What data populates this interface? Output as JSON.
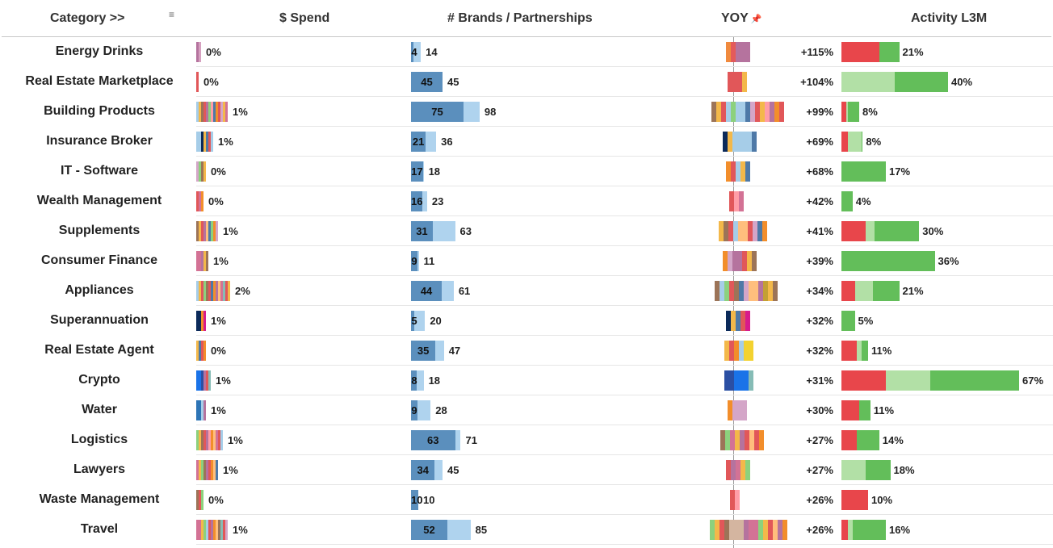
{
  "header": {
    "category": "Category >>",
    "spend": "$ Spend",
    "brands": "# Brands / Partnerships",
    "yoy": "YOY",
    "activity": "Activity L3M"
  },
  "icons": {
    "sort": "sort-icon",
    "pin": "pin-icon"
  },
  "colors": {
    "brand_dark": "#5b8fbd",
    "brand_light": "#afd3ee",
    "activity_red": "#e8464b",
    "activity_light_green": "#b2e0a6",
    "activity_green": "#63be5a"
  },
  "chart_data": {
    "type": "table",
    "rows": [
      {
        "category": "Energy Drinks",
        "spend_label": "0%",
        "spend_colors": [
          "#b5739e",
          "#d6a1c0"
        ],
        "brands": 4,
        "partnerships": 14,
        "yoy": "+115%",
        "yoy_colors": [
          "#f08a3e",
          "#e45a5a",
          "#b5739e",
          "#b5739e",
          "#b5739e"
        ],
        "activity": "21%",
        "act_red": 8.5,
        "act_light": 0,
        "act_green": 4.5
      },
      {
        "category": "Real Estate Marketplace",
        "spend_label": "0%",
        "spend_colors": [
          "#e15759"
        ],
        "brands": 45,
        "partnerships": 45,
        "yoy": "+104%",
        "yoy_colors": [
          "#e15759",
          "#e15759",
          "#e15759",
          "#f3b84a"
        ],
        "activity": "40%",
        "act_red": 0,
        "act_light": 12,
        "act_green": 12
      },
      {
        "category": "Building Products",
        "spend_label": "1%",
        "spend_colors": [
          "#a6cde8",
          "#f3b84a",
          "#9c7458",
          "#e15759",
          "#b5739e",
          "#8cd17d",
          "#ff9da7",
          "#4e79a7",
          "#f28e2b",
          "#e15759",
          "#d4a6c8",
          "#f3b84a",
          "#d37295"
        ],
        "brands": 75,
        "partnerships": 98,
        "yoy": "+99%",
        "yoy_colors": [
          "#9c7458",
          "#f3b84a",
          "#e15759",
          "#a6cde8",
          "#8cd17d",
          "#a6cde8",
          "#a6cde8",
          "#4e79a7",
          "#d4a6c8",
          "#e15759",
          "#f3b84a",
          "#ff9da7",
          "#b5739e",
          "#f28e2b",
          "#e15759"
        ],
        "activity": "8%",
        "act_red": 1,
        "act_light": 0.5,
        "act_green": 2.5
      },
      {
        "category": "Insurance Broker",
        "spend_label": "1%",
        "spend_colors": [
          "#a6cde8",
          "#a6cde8",
          "#0b2a5a",
          "#f3b84a",
          "#4e79a7",
          "#e15759",
          "#a6cde8"
        ],
        "brands": 21,
        "partnerships": 36,
        "yoy": "+69%",
        "yoy_colors": [
          "#0b2a5a",
          "#f3b84a",
          "#a6cde8",
          "#a6cde8",
          "#a6cde8",
          "#a6cde8",
          "#4e79a7"
        ],
        "activity": "8%",
        "act_red": 1.5,
        "act_light": 3,
        "act_green": 0.3
      },
      {
        "category": "IT - Software",
        "spend_label": "0%",
        "spend_colors": [
          "#d4a6c8",
          "#8cd17d",
          "#9c7458",
          "#f3b84a"
        ],
        "brands": 17,
        "partnerships": 18,
        "yoy": "+68%",
        "yoy_colors": [
          "#f28e2b",
          "#e15759",
          "#a6cde8",
          "#f3b84a",
          "#4e79a7"
        ],
        "activity": "17%",
        "act_red": 0,
        "act_light": 0,
        "act_green": 10
      },
      {
        "category": "Wealth Management",
        "spend_label": "0%",
        "spend_colors": [
          "#e15759",
          "#d37295",
          "#f28e2b"
        ],
        "brands": 16,
        "partnerships": 23,
        "yoy": "+42%",
        "yoy_colors": [
          "#e15759",
          "#ff9da7",
          "#d37295"
        ],
        "activity": "4%",
        "act_red": 0,
        "act_light": 0,
        "act_green": 2.5
      },
      {
        "category": "Supplements",
        "spend_label": "1%",
        "spend_colors": [
          "#9c7458",
          "#f3b84a",
          "#e15759",
          "#b5739e",
          "#ffbe7d",
          "#4e79a7",
          "#8cd17d",
          "#f28e2b",
          "#d4a6c8"
        ],
        "brands": 31,
        "partnerships": 63,
        "yoy": "+41%",
        "yoy_colors": [
          "#f3b84a",
          "#9c7458",
          "#e15759",
          "#a6cde8",
          "#ffbe7d",
          "#ffbe7d",
          "#e15759",
          "#d4a6c8",
          "#4e79a7",
          "#f28e2b"
        ],
        "activity": "30%",
        "act_red": 5.5,
        "act_light": 2,
        "act_green": 10
      },
      {
        "category": "Consumer Finance",
        "spend_label": "1%",
        "spend_colors": [
          "#d37295",
          "#d37295",
          "#b5739e",
          "#f3b84a",
          "#9c7458"
        ],
        "brands": 9,
        "partnerships": 11,
        "yoy": "+39%",
        "yoy_colors": [
          "#f28e2b",
          "#d4a6c8",
          "#b5739e",
          "#b5739e",
          "#e15759",
          "#f3b84a",
          "#9c7458"
        ],
        "activity": "36%",
        "act_red": 0,
        "act_light": 0,
        "act_green": 21
      },
      {
        "category": "Appliances",
        "spend_label": "2%",
        "spend_colors": [
          "#a6cde8",
          "#f3b84a",
          "#e15759",
          "#8cd17d",
          "#9c7458",
          "#e15759",
          "#4e79a7",
          "#f28e2b",
          "#b5739e",
          "#ffbe7d",
          "#d37295",
          "#86bcb6",
          "#e15759",
          "#f3b84a"
        ],
        "brands": 44,
        "partnerships": 61,
        "yoy": "+34%",
        "yoy_colors": [
          "#9c7458",
          "#a6cde8",
          "#8cd17d",
          "#e15759",
          "#9c7458",
          "#4e79a7",
          "#d4a6c8",
          "#ffbe7d",
          "#ffbe7d",
          "#b5739e",
          "#c4a034",
          "#f3b84a",
          "#9c7458"
        ],
        "activity": "21%",
        "act_red": 3,
        "act_light": 4,
        "act_green": 6
      },
      {
        "category": "Superannuation",
        "spend_label": "1%",
        "spend_colors": [
          "#0b2a5a",
          "#0b2a5a",
          "#f28e2b",
          "#d81b8c"
        ],
        "brands": 5,
        "partnerships": 20,
        "yoy": "+32%",
        "yoy_colors": [
          "#0b2a5a",
          "#f3b84a",
          "#4e79a7",
          "#e15759",
          "#d81b8c"
        ],
        "activity": "5%",
        "act_red": 0,
        "act_light": 0,
        "act_green": 3
      },
      {
        "category": "Real Estate Agent",
        "spend_label": "0%",
        "spend_colors": [
          "#f3b84a",
          "#4e79a7",
          "#e15759",
          "#f28e2b"
        ],
        "brands": 35,
        "partnerships": 47,
        "yoy": "+32%",
        "yoy_colors": [
          "#f3b84a",
          "#e15759",
          "#f28e2b",
          "#a6cde8",
          "#f3d230",
          "#f3d230"
        ],
        "activity": "11%",
        "act_red": 3.5,
        "act_light": 1,
        "act_green": 1.5
      },
      {
        "category": "Crypto",
        "spend_label": "1%",
        "spend_colors": [
          "#1a73e8",
          "#1a73e8",
          "#2b4fa3",
          "#b5739e",
          "#e15759",
          "#86bcb6"
        ],
        "brands": 8,
        "partnerships": 18,
        "yoy": "+31%",
        "yoy_colors": [
          "#2b4fa3",
          "#2b4fa3",
          "#1a73e8",
          "#1a73e8",
          "#1a73e8",
          "#86bcb6"
        ],
        "activity": "67%",
        "act_red": 10,
        "act_light": 10,
        "act_green": 20
      },
      {
        "category": "Water",
        "spend_label": "1%",
        "spend_colors": [
          "#2e75b6",
          "#2e75b6",
          "#a6cde8",
          "#b5739e"
        ],
        "brands": 9,
        "partnerships": 28,
        "yoy": "+30%",
        "yoy_colors": [
          "#f28e2b",
          "#d4a6c8",
          "#d4a6c8",
          "#d4a6c8"
        ],
        "activity": "11%",
        "act_red": 4,
        "act_light": 0,
        "act_green": 2.5
      },
      {
        "category": "Logistics",
        "spend_label": "1%",
        "spend_colors": [
          "#8cd17d",
          "#f3b84a",
          "#9c7458",
          "#e15759",
          "#b5739e",
          "#ff9da7",
          "#f28e2b",
          "#ffbe7d",
          "#d37295",
          "#e15759",
          "#a6cde8"
        ],
        "brands": 63,
        "partnerships": 71,
        "yoy": "+27%",
        "yoy_colors": [
          "#9c7458",
          "#8cd17d",
          "#d37295",
          "#f3b84a",
          "#b5739e",
          "#e15759",
          "#ffbe7d",
          "#e15759",
          "#f28e2b"
        ],
        "activity": "14%",
        "act_red": 3.5,
        "act_light": 0,
        "act_green": 5
      },
      {
        "category": "Lawyers",
        "spend_label": "1%",
        "spend_colors": [
          "#d37295",
          "#f3b84a",
          "#8cd17d",
          "#9c7458",
          "#b5739e",
          "#e15759",
          "#f28e2b",
          "#ffbe7d",
          "#4e79a7"
        ],
        "brands": 34,
        "partnerships": 45,
        "yoy": "+27%",
        "yoy_colors": [
          "#e15759",
          "#b5739e",
          "#d37295",
          "#f3b84a",
          "#8cd17d"
        ],
        "activity": "18%",
        "act_red": 0,
        "act_light": 5.5,
        "act_green": 5.5
      },
      {
        "category": "Waste Management",
        "spend_label": "0%",
        "spend_colors": [
          "#9c7458",
          "#e15759",
          "#8cd17d"
        ],
        "brands": 10,
        "partnerships": 10,
        "yoy": "+26%",
        "yoy_colors": [
          "#e15759",
          "#ff9da7"
        ],
        "activity": "10%",
        "act_red": 6,
        "act_light": 0,
        "act_green": 0
      },
      {
        "category": "Travel",
        "spend_label": "1%",
        "spend_colors": [
          "#d37295",
          "#d37295",
          "#f3b84a",
          "#8cd17d",
          "#a6cde8",
          "#e15759",
          "#b5739e",
          "#f28e2b",
          "#ffbe7d",
          "#9c7458",
          "#86bcb6",
          "#e15759",
          "#d4a6c8"
        ],
        "brands": 52,
        "partnerships": 85,
        "yoy": "+26%",
        "yoy_colors": [
          "#8cd17d",
          "#f3b84a",
          "#e15759",
          "#9c7458",
          "#d4b5a0",
          "#d4b5a0",
          "#d4b5a0",
          "#b5739e",
          "#d37295",
          "#d37295",
          "#8cd17d",
          "#f3b84a",
          "#e15759",
          "#ffbe7d",
          "#b5739e",
          "#f28e2b"
        ],
        "activity": "16%",
        "act_red": 1.5,
        "act_light": 1,
        "act_green": 7.5
      }
    ]
  }
}
